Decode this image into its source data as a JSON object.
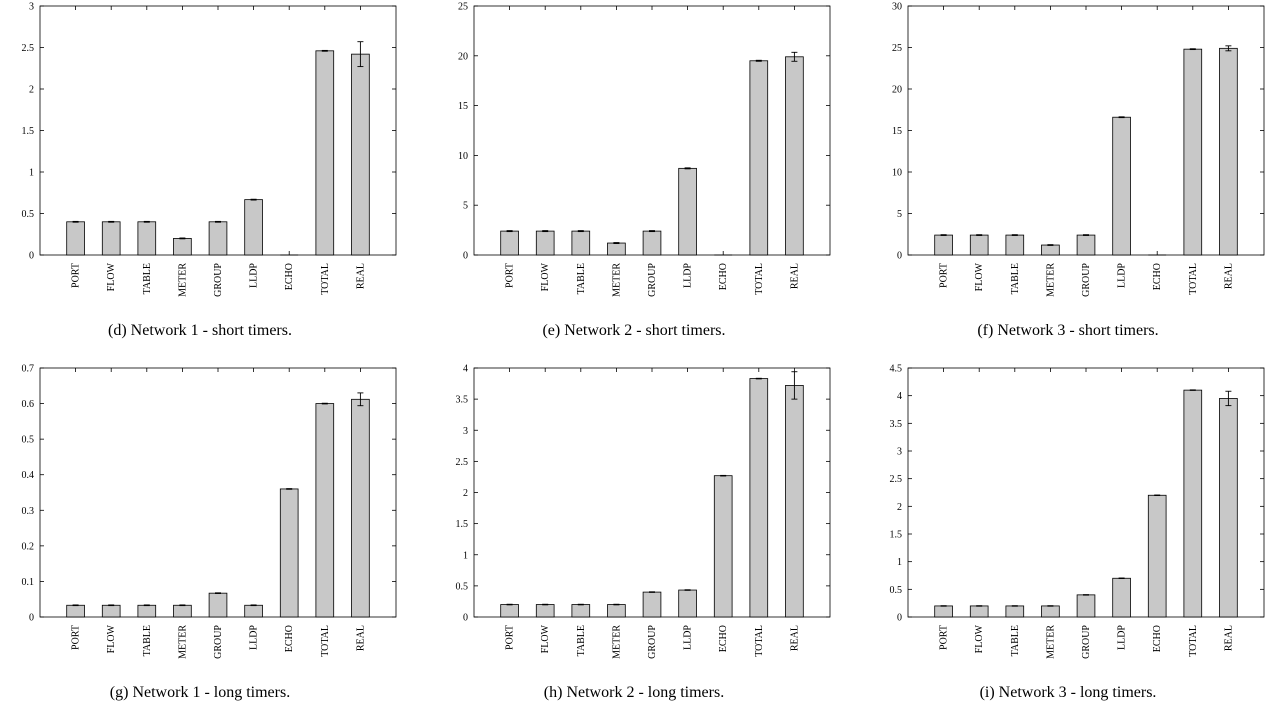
{
  "chart_data": [
    {
      "type": "bar",
      "caption": "(d) Network 1 - short timers.",
      "categories": [
        "PORT",
        "FLOW",
        "TABLE",
        "METER",
        "GROUP",
        "LLDP",
        "ECHO",
        "TOTAL",
        "REAL"
      ],
      "values": [
        0.4,
        0.4,
        0.4,
        0.2,
        0.4,
        0.667,
        0.0,
        2.46,
        2.42
      ],
      "errors": [
        0.005,
        0.005,
        0.005,
        0.005,
        0.005,
        0.005,
        0.0,
        0.005,
        0.15
      ],
      "ylim": [
        0,
        3
      ],
      "yticks": [
        0,
        0.5,
        1,
        1.5,
        2,
        2.5,
        3
      ],
      "ytick_labels": [
        "0",
        "0.5",
        "1",
        "1.5",
        "2",
        "2.5",
        "3"
      ],
      "xlabel": "",
      "ylabel": "",
      "bar_color": "#c8c8c8",
      "grid": false
    },
    {
      "type": "bar",
      "caption": "(e) Network 2 - short timers.",
      "categories": [
        "PORT",
        "FLOW",
        "TABLE",
        "METER",
        "GROUP",
        "LLDP",
        "ECHO",
        "TOTAL",
        "REAL"
      ],
      "values": [
        2.4,
        2.4,
        2.4,
        1.2,
        2.4,
        8.7,
        0.0,
        19.5,
        19.9
      ],
      "errors": [
        0.05,
        0.05,
        0.05,
        0.05,
        0.05,
        0.05,
        0.0,
        0.05,
        0.45
      ],
      "ylim": [
        0,
        25
      ],
      "yticks": [
        0,
        5,
        10,
        15,
        20,
        25
      ],
      "ytick_labels": [
        "0",
        "5",
        "10",
        "15",
        "20",
        "25"
      ],
      "xlabel": "",
      "ylabel": "",
      "bar_color": "#c8c8c8",
      "grid": false
    },
    {
      "type": "bar",
      "caption": "(f) Network 3 - short timers.",
      "categories": [
        "PORT",
        "FLOW",
        "TABLE",
        "METER",
        "GROUP",
        "LLDP",
        "ECHO",
        "TOTAL",
        "REAL"
      ],
      "values": [
        2.4,
        2.4,
        2.4,
        1.2,
        2.4,
        16.6,
        0.0,
        24.8,
        24.9
      ],
      "errors": [
        0.05,
        0.05,
        0.05,
        0.05,
        0.05,
        0.05,
        0.0,
        0.05,
        0.3
      ],
      "ylim": [
        0,
        30
      ],
      "yticks": [
        0,
        5,
        10,
        15,
        20,
        25,
        30
      ],
      "ytick_labels": [
        "0",
        "5",
        "10",
        "15",
        "20",
        "25",
        "30"
      ],
      "xlabel": "",
      "ylabel": "",
      "bar_color": "#c8c8c8",
      "grid": false
    },
    {
      "type": "bar",
      "caption": "(g) Network 1 - long timers.",
      "categories": [
        "PORT",
        "FLOW",
        "TABLE",
        "METER",
        "GROUP",
        "LLDP",
        "ECHO",
        "TOTAL",
        "REAL"
      ],
      "values": [
        0.033,
        0.033,
        0.033,
        0.033,
        0.067,
        0.033,
        0.36,
        0.6,
        0.612
      ],
      "errors": [
        0.001,
        0.001,
        0.001,
        0.001,
        0.001,
        0.001,
        0.001,
        0.001,
        0.018
      ],
      "ylim": [
        0,
        0.7
      ],
      "yticks": [
        0,
        0.1,
        0.2,
        0.3,
        0.4,
        0.5,
        0.6,
        0.7
      ],
      "ytick_labels": [
        "0",
        "0.1",
        "0.2",
        "0.3",
        "0.4",
        "0.5",
        "0.6",
        "0.7"
      ],
      "xlabel": "",
      "ylabel": "",
      "bar_color": "#c8c8c8",
      "grid": false
    },
    {
      "type": "bar",
      "caption": "(h) Network 2 - long timers.",
      "categories": [
        "PORT",
        "FLOW",
        "TABLE",
        "METER",
        "GROUP",
        "LLDP",
        "ECHO",
        "TOTAL",
        "REAL"
      ],
      "values": [
        0.2,
        0.2,
        0.2,
        0.2,
        0.4,
        0.433,
        2.27,
        3.83,
        3.72
      ],
      "errors": [
        0.005,
        0.005,
        0.005,
        0.005,
        0.005,
        0.005,
        0.005,
        0.005,
        0.22
      ],
      "ylim": [
        0,
        4
      ],
      "yticks": [
        0,
        0.5,
        1,
        1.5,
        2,
        2.5,
        3,
        3.5,
        4
      ],
      "ytick_labels": [
        "0",
        "0.5",
        "1",
        "1.5",
        "2",
        "2.5",
        "3",
        "3.5",
        "4"
      ],
      "xlabel": "",
      "ylabel": "",
      "bar_color": "#c8c8c8",
      "grid": false
    },
    {
      "type": "bar",
      "caption": "(i) Network 3 - long timers.",
      "categories": [
        "PORT",
        "FLOW",
        "TABLE",
        "METER",
        "GROUP",
        "LLDP",
        "ECHO",
        "TOTAL",
        "REAL"
      ],
      "values": [
        0.2,
        0.2,
        0.2,
        0.2,
        0.4,
        0.7,
        2.2,
        4.1,
        3.95
      ],
      "errors": [
        0.005,
        0.005,
        0.005,
        0.005,
        0.005,
        0.005,
        0.005,
        0.005,
        0.13
      ],
      "ylim": [
        0,
        4.5
      ],
      "yticks": [
        0,
        0.5,
        1,
        1.5,
        2,
        2.5,
        3,
        3.5,
        4,
        4.5
      ],
      "ytick_labels": [
        "0",
        "0.5",
        "1",
        "1.5",
        "2",
        "2.5",
        "3",
        "3.5",
        "4",
        "4.5"
      ],
      "xlabel": "",
      "ylabel": "",
      "bar_color": "#c8c8c8",
      "grid": false
    }
  ]
}
